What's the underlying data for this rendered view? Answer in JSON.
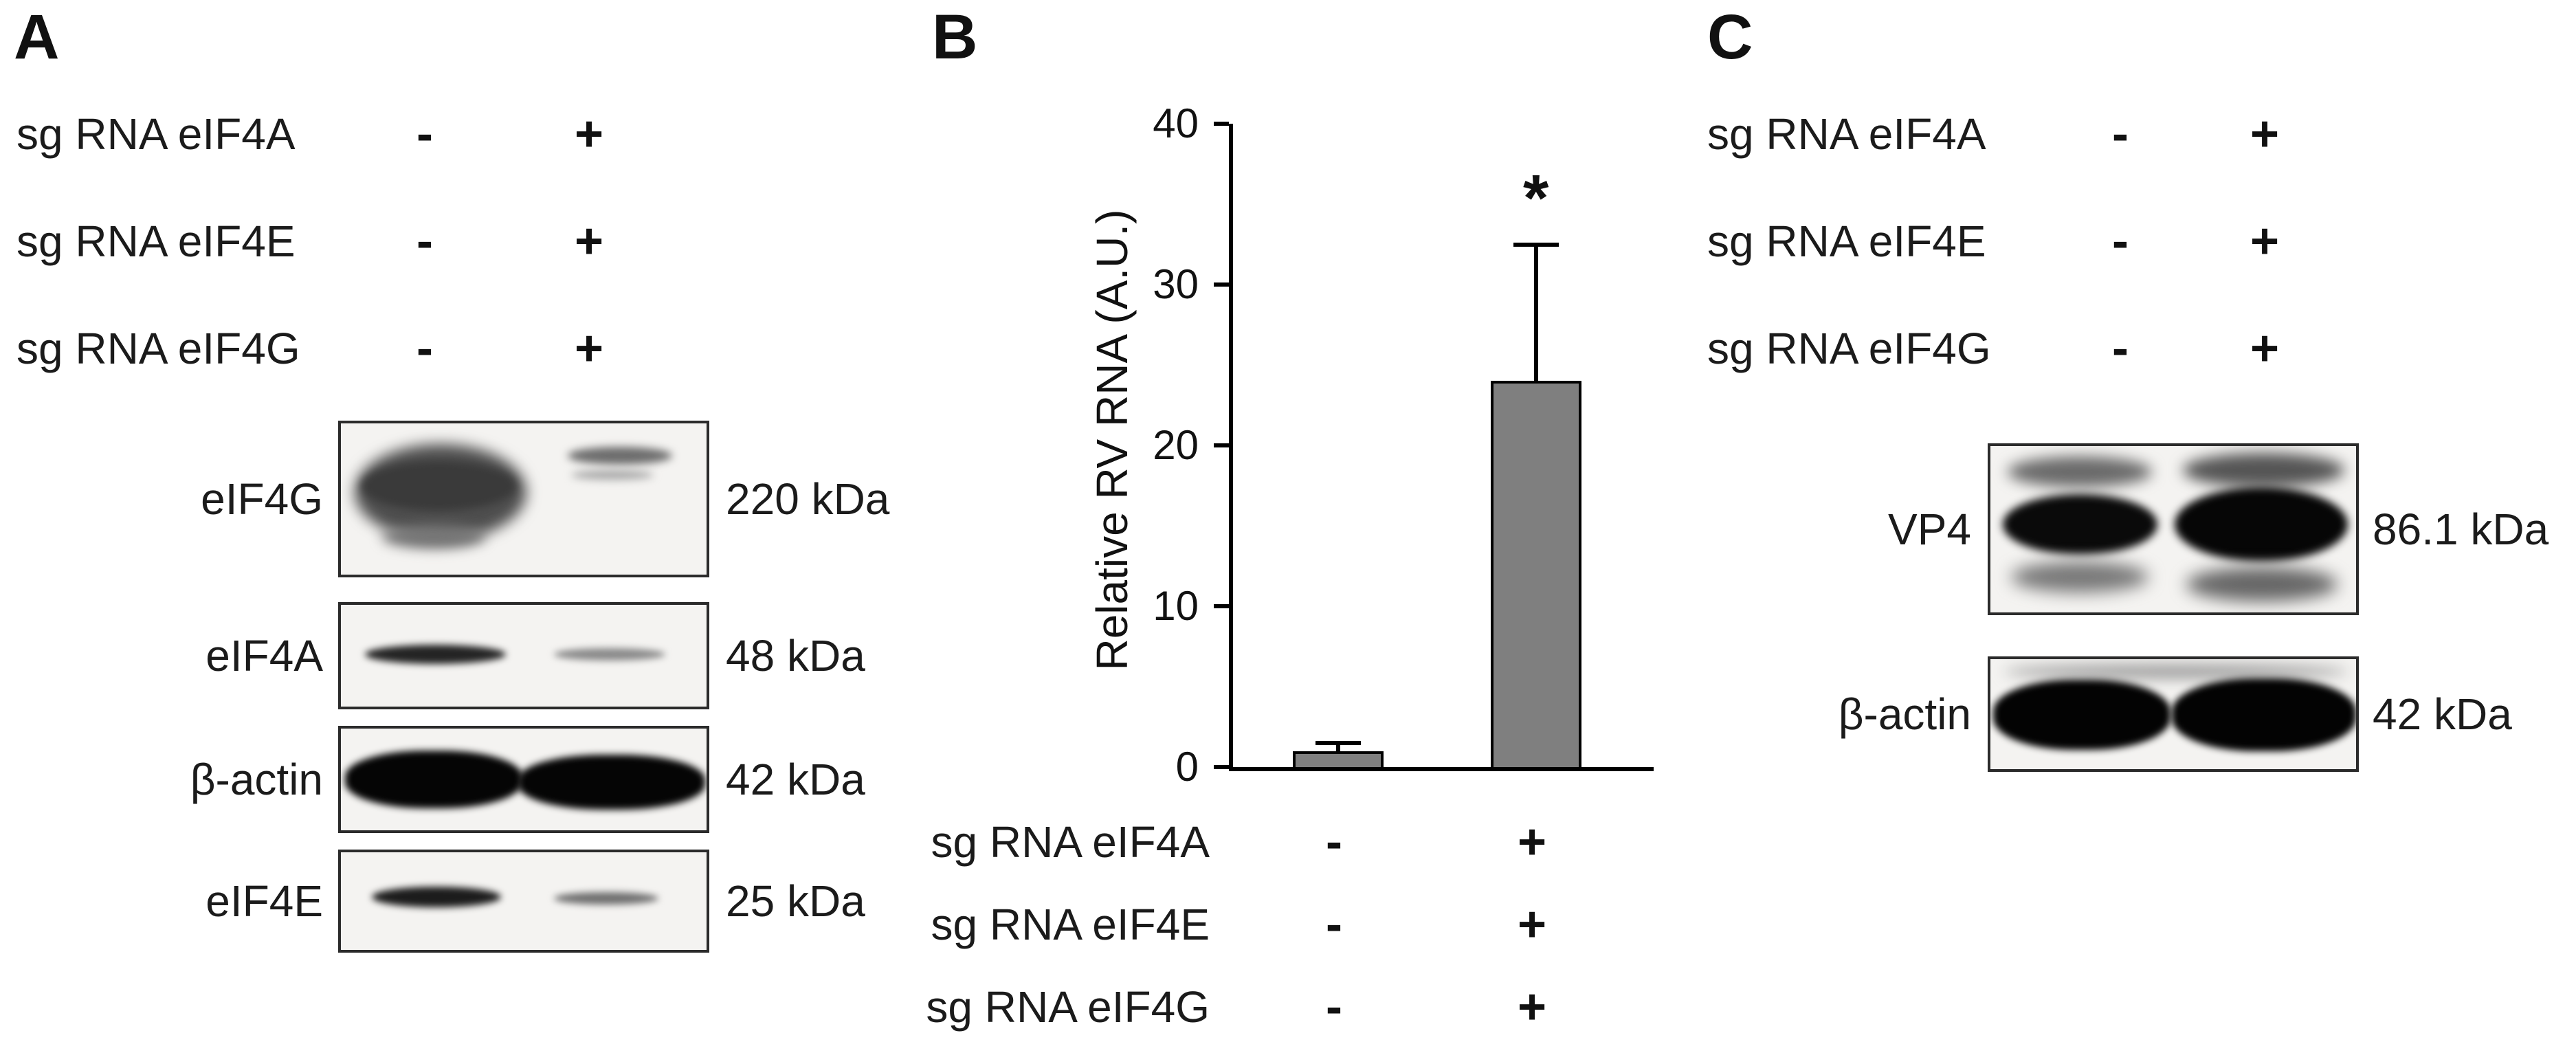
{
  "panelA": {
    "label": "A",
    "conditions": [
      {
        "label": "sg RNA eIF4A",
        "signs": [
          "-",
          "+"
        ]
      },
      {
        "label": "sg RNA eIF4E",
        "signs": [
          "-",
          "+"
        ]
      },
      {
        "label": "sg RNA eIF4G",
        "signs": [
          "-",
          "+"
        ]
      }
    ],
    "blots": [
      {
        "protein": "eIF4G",
        "mw": "220 kDa"
      },
      {
        "protein": "eIF4A",
        "mw": "48 kDa"
      },
      {
        "protein": "β-actin",
        "mw": "42 kDa"
      },
      {
        "protein": "eIF4E",
        "mw": "25 kDa"
      }
    ]
  },
  "panelB": {
    "label": "B"
  },
  "panelC": {
    "label": "C",
    "conditions": [
      {
        "label": "sg RNA eIF4A",
        "signs": [
          "-",
          "+"
        ]
      },
      {
        "label": "sg RNA eIF4E",
        "signs": [
          "-",
          "+"
        ]
      },
      {
        "label": "sg RNA eIF4G",
        "signs": [
          "-",
          "+"
        ]
      }
    ],
    "blots": [
      {
        "protein": "VP4",
        "mw": "86.1 kDa"
      },
      {
        "protein": "β-actin",
        "mw": "42 kDa"
      }
    ]
  },
  "chart_data": {
    "type": "bar",
    "title": "",
    "xlabel": "",
    "ylabel": "Relative RV RNA (A.U.)",
    "ylim": [
      0,
      40
    ],
    "yticks": [
      0,
      10,
      20,
      30,
      40
    ],
    "categories": [
      "sg RNA eIF4A/eIF4E/eIF4G: - / - / -",
      "sg RNA eIF4A/eIF4E/eIF4G: + / + / +"
    ],
    "values": [
      1,
      24
    ],
    "errors_plus": [
      0.5,
      8.5
    ],
    "significance": [
      "",
      "*"
    ],
    "bar_color": "#7f7f7f",
    "grid": false,
    "legend": "none",
    "condition_rows": [
      {
        "label": "sg RNA eIF4A",
        "values": [
          "-",
          "+"
        ]
      },
      {
        "label": "sg RNA eIF4E",
        "values": [
          "-",
          "+"
        ]
      },
      {
        "label": "sg RNA eIF4G",
        "values": [
          "-",
          "+"
        ]
      }
    ]
  }
}
